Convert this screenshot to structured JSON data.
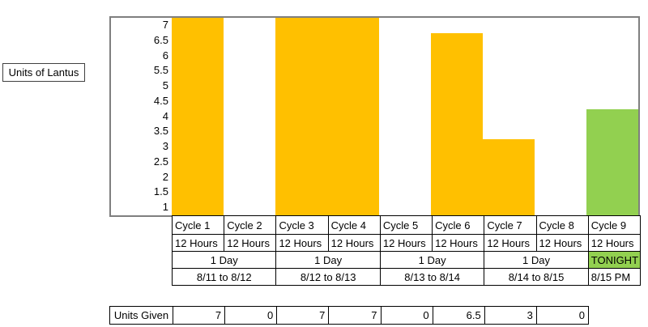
{
  "axis_title": "Units of Lantus",
  "chart_data": {
    "type": "bar",
    "ylabel": "Units of Lantus",
    "categories": [
      "Cycle 1",
      "Cycle 2",
      "Cycle 3",
      "Cycle 4",
      "Cycle 5",
      "Cycle 6",
      "Cycle 7",
      "Cycle 8",
      "Cycle 9"
    ],
    "values": [
      7,
      0,
      7,
      7,
      0,
      6.5,
      3,
      0,
      4
    ],
    "bar_colors": [
      "#FFC000",
      "#FFC000",
      "#FFC000",
      "#FFC000",
      "#FFC000",
      "#FFC000",
      "#FFC000",
      "#FFC000",
      "#92D050"
    ],
    "y_ticks": [
      "7",
      "6.5",
      "6",
      "5.5",
      "5",
      "4.5",
      "4",
      "3.5",
      "3",
      "2.5",
      "2",
      "1.5",
      "1"
    ],
    "ylim": [
      0.75,
      7.25
    ],
    "grid": false,
    "legend": false
  },
  "cycle_table": {
    "cycle_row": [
      "Cycle 1",
      "Cycle 2",
      "Cycle 3",
      "Cycle 4",
      "Cycle 5",
      "Cycle 6",
      "Cycle 7",
      "Cycle 8",
      "Cycle 9"
    ],
    "hours_row": [
      "12 Hours",
      "12 Hours",
      "12 Hours",
      "12 Hours",
      "12 Hours",
      "12 Hours",
      "12 Hours",
      "12 Hours",
      "12 Hours"
    ],
    "period_row": [
      {
        "label": "1 Day",
        "span": 2
      },
      {
        "label": "1 Day",
        "span": 2
      },
      {
        "label": "1 Day",
        "span": 2
      },
      {
        "label": "1 Day",
        "span": 2
      },
      {
        "label": "TONIGHT",
        "span": 1,
        "bg": "#92D050"
      }
    ],
    "date_row": [
      {
        "label": "8/11 to 8/12",
        "span": 2
      },
      {
        "label": "8/12 to 8/13",
        "span": 2
      },
      {
        "label": "8/13 to 8/14",
        "span": 2
      },
      {
        "label": "8/14 to 8/15",
        "span": 2
      },
      {
        "label": "8/15 PM",
        "span": 1
      }
    ]
  },
  "units_given": {
    "label": "Units Given",
    "values": [
      "7",
      "0",
      "7",
      "7",
      "0",
      "6.5",
      "3",
      "0"
    ]
  },
  "colors": {
    "bar_orange": "#FFC000",
    "bar_green": "#92D050",
    "tonight_bg": "#92D050",
    "chart_border": "#7F7F7F",
    "table_border": "#000000",
    "text": "#000000"
  }
}
